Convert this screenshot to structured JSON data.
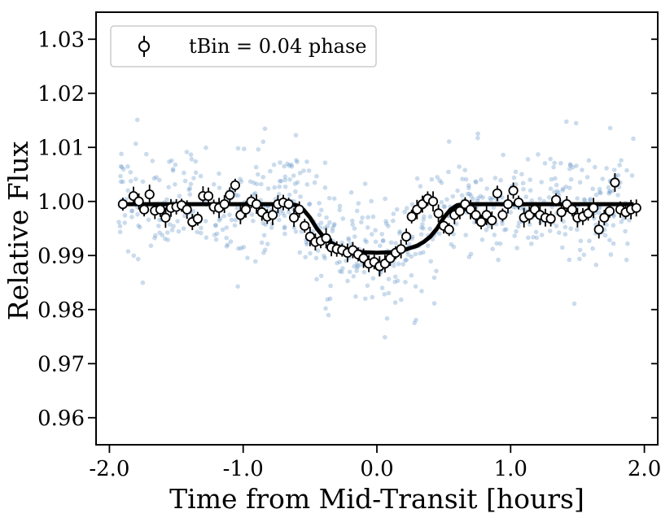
{
  "chart_data": {
    "type": "scatter",
    "title": "",
    "xlabel": "Time from Mid-Transit [hours]",
    "ylabel": "Relative Flux",
    "xlim": [
      -2.1,
      2.1
    ],
    "ylim": [
      0.955,
      1.035
    ],
    "xticks": [
      -2.0,
      -1.0,
      0.0,
      1.0,
      2.0
    ],
    "xtick_labels": [
      "-2.0",
      "-1.0",
      "0.0",
      "1.0",
      "2.0"
    ],
    "yticks": [
      0.96,
      0.97,
      0.98,
      0.99,
      1.0,
      1.01,
      1.02,
      1.03
    ],
    "ytick_labels": [
      "0.96",
      "0.97",
      "0.98",
      "0.99",
      "1.00",
      "1.01",
      "1.02",
      "1.03"
    ],
    "grid": false,
    "legend": {
      "position": "top-left",
      "entries": [
        "tBin = 0.04 phase"
      ]
    },
    "colors": {
      "raw": "#5b8fc4",
      "binned": "#000000",
      "model": "#000000"
    },
    "raw_points": {
      "description_scatter": "unbinned flux measurements",
      "x_range": [
        -1.93,
        1.93
      ],
      "std": 0.0055,
      "count": 700
    },
    "series": [
      {
        "name": "tBin = 0.04 phase",
        "x": [
          -1.9,
          -1.82,
          -1.78,
          -1.74,
          -1.7,
          -1.66,
          -1.62,
          -1.58,
          -1.54,
          -1.5,
          -1.46,
          -1.42,
          -1.38,
          -1.34,
          -1.3,
          -1.26,
          -1.22,
          -1.18,
          -1.14,
          -1.1,
          -1.06,
          -1.02,
          -0.98,
          -0.94,
          -0.9,
          -0.86,
          -0.82,
          -0.78,
          -0.74,
          -0.7,
          -0.66,
          -0.62,
          -0.58,
          -0.54,
          -0.5,
          -0.46,
          -0.42,
          -0.38,
          -0.34,
          -0.3,
          -0.26,
          -0.22,
          -0.18,
          -0.14,
          -0.1,
          -0.06,
          -0.02,
          0.02,
          0.06,
          0.1,
          0.14,
          0.18,
          0.22,
          0.26,
          0.3,
          0.34,
          0.38,
          0.42,
          0.46,
          0.5,
          0.54,
          0.58,
          0.62,
          0.66,
          0.7,
          0.74,
          0.78,
          0.82,
          0.86,
          0.9,
          0.94,
          0.98,
          1.02,
          1.06,
          1.1,
          1.14,
          1.18,
          1.22,
          1.26,
          1.3,
          1.34,
          1.38,
          1.42,
          1.46,
          1.5,
          1.54,
          1.58,
          1.62,
          1.66,
          1.7,
          1.74,
          1.78,
          1.82,
          1.86,
          1.9,
          1.94
        ],
        "y": [
          0.9995,
          1.001,
          1.0,
          0.9985,
          1.0013,
          0.9983,
          0.9985,
          0.997,
          0.9988,
          0.999,
          0.9993,
          0.9985,
          0.9962,
          0.9968,
          1.001,
          1.001,
          0.999,
          0.9988,
          0.9995,
          1.0012,
          1.003,
          0.9975,
          0.9985,
          1.0,
          0.9995,
          0.998,
          0.9972,
          0.9975,
          0.9995,
          0.9998,
          0.9995,
          0.997,
          0.9985,
          0.9955,
          0.9935,
          0.9925,
          0.9927,
          0.9932,
          0.9915,
          0.9912,
          0.991,
          0.9905,
          0.991,
          0.9902,
          0.9895,
          0.9885,
          0.9888,
          0.988,
          0.9885,
          0.9895,
          0.9905,
          0.9912,
          0.9935,
          0.9972,
          0.9985,
          0.9995,
          1.0005,
          1.0,
          0.9978,
          0.9955,
          0.9948,
          0.9975,
          0.9982,
          0.9995,
          0.9985,
          0.9975,
          0.9962,
          0.9975,
          0.9965,
          1.0015,
          0.9975,
          0.9995,
          1.002,
          0.9998,
          0.997,
          0.9975,
          0.9985,
          0.9975,
          0.997,
          0.9968,
          1.0003,
          0.998,
          0.9995,
          0.9985,
          0.997,
          0.9972,
          0.9978,
          0.9988,
          0.9948,
          0.997,
          0.9982,
          1.0035,
          0.9985,
          0.998,
          0.9985,
          0.9988
        ],
        "yerr": 0.0015
      },
      {
        "name": "transit model",
        "x": [
          -1.9,
          -0.65,
          -0.6,
          -0.55,
          -0.5,
          -0.45,
          -0.4,
          -0.35,
          -0.3,
          -0.2,
          -0.1,
          0.0,
          0.1,
          0.2,
          0.3,
          0.35,
          0.4,
          0.45,
          0.5,
          0.55,
          0.6,
          0.65,
          1.92
        ],
        "y": [
          0.9995,
          0.9995,
          0.9993,
          0.9985,
          0.997,
          0.995,
          0.9935,
          0.9925,
          0.9918,
          0.991,
          0.9906,
          0.9905,
          0.9906,
          0.991,
          0.9918,
          0.9925,
          0.9935,
          0.995,
          0.997,
          0.9985,
          0.9993,
          0.9995,
          0.9995
        ]
      }
    ]
  }
}
